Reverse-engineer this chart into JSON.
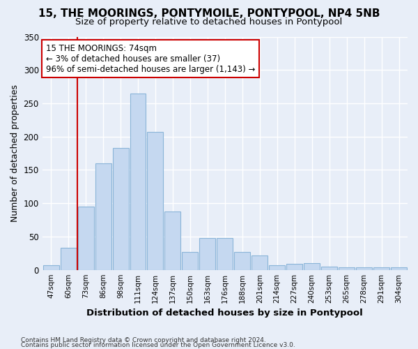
{
  "title": "15, THE MOORINGS, PONTYMOILE, PONTYPOOL, NP4 5NB",
  "subtitle": "Size of property relative to detached houses in Pontypool",
  "xlabel": "Distribution of detached houses by size in Pontypool",
  "ylabel": "Number of detached properties",
  "bar_color": "#c5d8f0",
  "bar_edge_color": "#8ab4d8",
  "categories": [
    "47sqm",
    "60sqm",
    "73sqm",
    "86sqm",
    "98sqm",
    "111sqm",
    "124sqm",
    "137sqm",
    "150sqm",
    "163sqm",
    "176sqm",
    "188sqm",
    "201sqm",
    "214sqm",
    "227sqm",
    "240sqm",
    "253sqm",
    "265sqm",
    "278sqm",
    "291sqm",
    "304sqm"
  ],
  "values": [
    7,
    33,
    95,
    160,
    183,
    265,
    207,
    88,
    27,
    48,
    48,
    27,
    22,
    7,
    9,
    10,
    5,
    4,
    4,
    4,
    4
  ],
  "property_line_bin": 2,
  "annotation_line1": "15 THE MOORINGS: 74sqm",
  "annotation_line2": "← 3% of detached houses are smaller (37)",
  "annotation_line3": "96% of semi-detached houses are larger (1,143) →",
  "annotation_box_color": "#ffffff",
  "annotation_box_edge": "#cc0000",
  "property_line_color": "#cc0000",
  "ylim": [
    0,
    350
  ],
  "yticks": [
    0,
    50,
    100,
    150,
    200,
    250,
    300,
    350
  ],
  "footnote1": "Contains HM Land Registry data © Crown copyright and database right 2024.",
  "footnote2": "Contains public sector information licensed under the Open Government Licence v3.0.",
  "bg_color": "#e8eef8",
  "grid_color": "#ffffff",
  "title_fontsize": 11,
  "subtitle_fontsize": 9.5
}
